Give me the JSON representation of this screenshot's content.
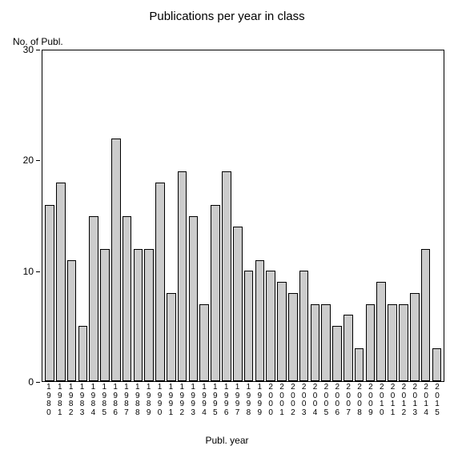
{
  "chart": {
    "type": "bar",
    "title": "Publications per year in class",
    "title_fontsize": 15,
    "y_axis_title": "No. of Publ.",
    "x_axis_title": "Publ. year",
    "label_fontsize": 12,
    "background_color": "#ffffff",
    "bar_color": "#cccccc",
    "bar_border_color": "#000000",
    "axis_color": "#000000",
    "text_color": "#000000",
    "ylim": [
      0,
      30
    ],
    "yticks": [
      0,
      10,
      20,
      30
    ],
    "bar_width": 0.84,
    "categories": [
      "1980",
      "1981",
      "1982",
      "1983",
      "1984",
      "1985",
      "1986",
      "1987",
      "1988",
      "1989",
      "1990",
      "1991",
      "1992",
      "1993",
      "1994",
      "1995",
      "1996",
      "1997",
      "1998",
      "1999",
      "2000",
      "2001",
      "2002",
      "2003",
      "2004",
      "2005",
      "2006",
      "2007",
      "2008",
      "2009",
      "2010",
      "2011",
      "2012",
      "2013",
      "2014",
      "2015"
    ],
    "values": [
      16,
      18,
      11,
      5,
      15,
      12,
      22,
      15,
      12,
      12,
      18,
      8,
      19,
      15,
      7,
      16,
      19,
      14,
      10,
      11,
      10,
      9,
      8,
      10,
      7,
      7,
      5,
      6,
      3,
      7,
      9,
      7,
      7,
      8,
      12,
      3
    ]
  }
}
